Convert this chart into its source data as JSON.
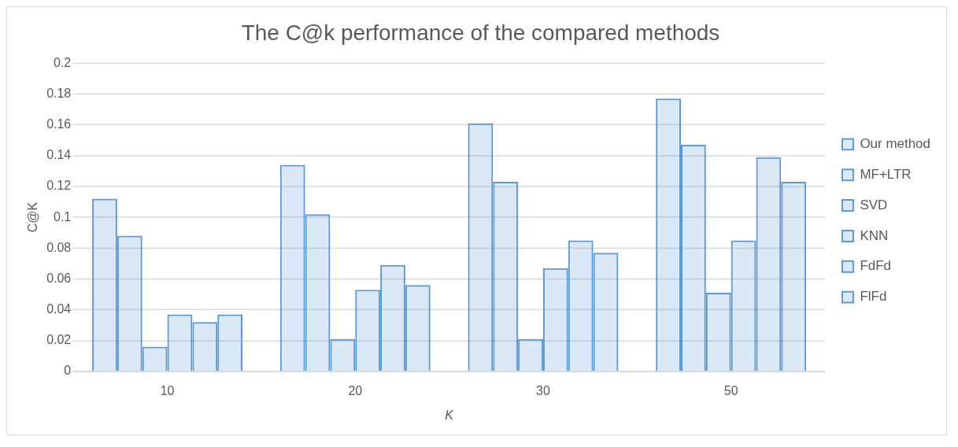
{
  "chart_data": {
    "type": "bar",
    "title": "The C@k performance of the compared methods",
    "xlabel": "K",
    "ylabel": "C@K",
    "categories": [
      "10",
      "20",
      "30",
      "50"
    ],
    "series": [
      {
        "name": "Our method",
        "color": "#5b9bd5",
        "values": [
          0.112,
          0.134,
          0.161,
          0.177
        ]
      },
      {
        "name": "MF+LTR",
        "color": "#5b9bd5",
        "values": [
          0.088,
          0.102,
          0.123,
          0.147
        ]
      },
      {
        "name": "SVD",
        "color": "#5b9bd5",
        "values": [
          0.016,
          0.021,
          0.021,
          0.051
        ]
      },
      {
        "name": "KNN",
        "color": "#5b9bd5",
        "values": [
          0.037,
          0.053,
          0.067,
          0.085
        ]
      },
      {
        "name": "FdFd",
        "color": "#5b9bd5",
        "values": [
          0.032,
          0.069,
          0.085,
          0.139
        ]
      },
      {
        "name": "FlFd",
        "color": "#5b9bd5",
        "values": [
          0.037,
          0.056,
          0.077,
          0.123
        ]
      }
    ],
    "ylim": [
      0,
      0.2
    ],
    "yticks": [
      0,
      0.02,
      0.04,
      0.06,
      0.08,
      0.1,
      0.12,
      0.14,
      0.16,
      0.18,
      0.2
    ],
    "grid": "y",
    "legend": "right"
  }
}
